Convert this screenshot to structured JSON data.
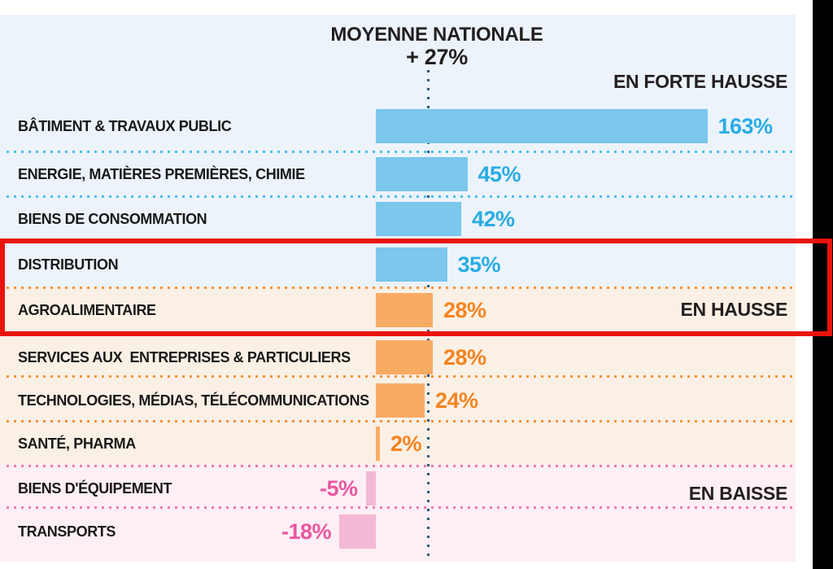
{
  "title": {
    "line1": "MOYENNE NATIONALE",
    "line2": "+ 27%"
  },
  "chart_data": {
    "type": "bar",
    "orientation": "horizontal",
    "title": "MOYENNE NATIONALE",
    "subtitle": "+ 27%",
    "unit": "%",
    "national_average_pct": 27,
    "xlim": [
      -27,
      205
    ],
    "reference_line": {
      "value": 27,
      "style": "dotted-vertical"
    },
    "grid": "dotted-row-separators",
    "groups": [
      {
        "key": "strong-rise",
        "name": "EN FORTE HAUSSE",
        "bar_color": "#7bc7ed",
        "value_color": "#29ace3",
        "bg_color": "#ecf3fb"
      },
      {
        "key": "rise",
        "name": "EN HAUSSE",
        "bar_color": "#f8ab63",
        "value_color": "#f58420",
        "bg_color": "#fbf0e5"
      },
      {
        "key": "fall",
        "name": "EN BAISSE",
        "bar_color": "#f4b8d4",
        "value_color": "#ea57a0",
        "bg_color": "#fdeff5"
      }
    ],
    "rows": [
      {
        "category": "BÂTIMENT & TRAVAUX PUBLIC",
        "value": 163,
        "label": "163%",
        "group": "strong-rise"
      },
      {
        "category": "ENERGIE, MATIÈRES PREMIÈRES, CHIMIE",
        "value": 45,
        "label": "45%",
        "group": "strong-rise"
      },
      {
        "category": "BIENS DE CONSOMMATION",
        "value": 42,
        "label": "42%",
        "group": "strong-rise"
      },
      {
        "category": "DISTRIBUTION",
        "value": 35,
        "label": "35%",
        "group": "strong-rise"
      },
      {
        "category": "AGROALIMENTAIRE",
        "value": 28,
        "label": "28%",
        "group": "rise"
      },
      {
        "category": "SERVICES AUX  ENTREPRISES & PARTICULIERS",
        "value": 28,
        "label": "28%",
        "group": "rise"
      },
      {
        "category": "TECHNOLOGIES, MÉDIAS, TÉLÉCOMMUNICATIONS",
        "value": 24,
        "label": "24%",
        "group": "rise"
      },
      {
        "category": "SANTÉ, PHARMA",
        "value": 2,
        "label": "2%",
        "group": "rise"
      },
      {
        "category": "BIENS D'ÉQUIPEMENT",
        "value": -5,
        "label": "-5%",
        "group": "fall"
      },
      {
        "category": "TRANSPORTS",
        "value": -18,
        "label": "-18%",
        "group": "fall"
      }
    ],
    "legend_position": "inline-right"
  },
  "annotation": {
    "type": "red-highlight-box",
    "color": "#e9130d",
    "highlighted_rows": [
      "DISTRIBUTION",
      "AGROALIMENTAIRE"
    ]
  },
  "colors": {
    "strong_rise_bar": "#7bc7ed",
    "strong_rise_value": "#29ace3",
    "rise_bar": "#f8ab63",
    "rise_value": "#f58420",
    "fall_bar": "#f4b8d4",
    "fall_value": "#ea57a0",
    "section_bg_blue": "#ecf3fb",
    "section_bg_peach": "#fbf0e5",
    "section_bg_pink": "#fdeff5",
    "separator_blue": "#49c0eb",
    "separator_orange": "#f29338",
    "separator_pink": "#f07ab0",
    "reference_line_dots": "#2a5a7a",
    "annotation_red": "#e9130d",
    "edge_strip_black": "#000000"
  }
}
